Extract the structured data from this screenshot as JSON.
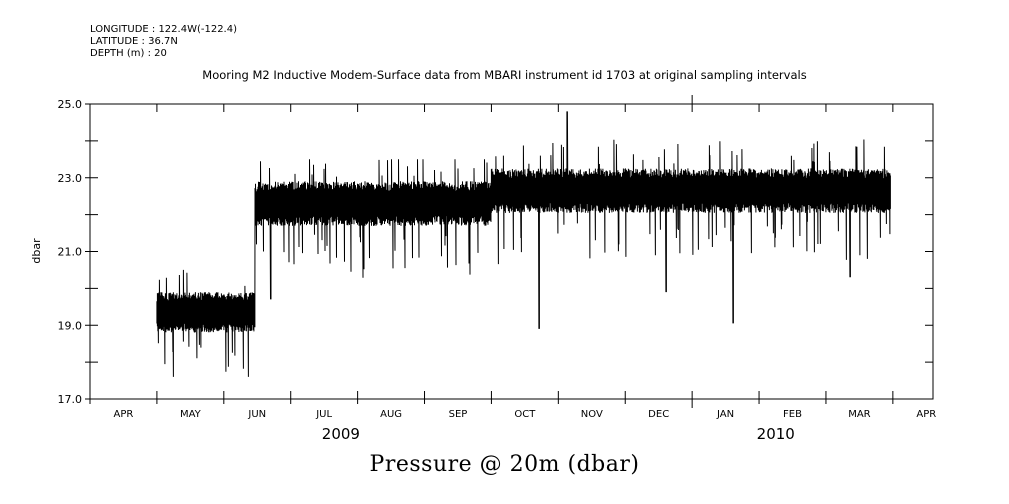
{
  "header": {
    "longitude": "LONGITUDE : 122.4W(-122.4)",
    "latitude": "LATITUDE : 36.7N",
    "depth": "DEPTH (m) : 20"
  },
  "chart_data": {
    "type": "line",
    "title": "Mooring M2 Inductive Modem-Surface data from MBARI instrument id 1703 at original sampling intervals",
    "bottom_title": "Pressure @ 20m (dbar)",
    "ylabel": "dbar",
    "xlabel": "",
    "ylim": [
      17.0,
      25.0
    ],
    "yticks": [
      "17.0",
      "19.0",
      "21.0",
      "23.0",
      "25.0"
    ],
    "xlim_months": [
      0,
      12.6
    ],
    "x_month_labels": [
      "APR",
      "MAY",
      "JUN",
      "JUL",
      "AUG",
      "SEP",
      "OCT",
      "NOV",
      "DEC",
      "JAN",
      "FEB",
      "MAR",
      "APR"
    ],
    "x_year_labels": [
      {
        "label": "2009",
        "month_index": 4
      },
      {
        "label": "2010",
        "month_index": 10.5
      }
    ],
    "grid": false,
    "series": [
      {
        "segments": [
          {
            "start": "2009-05-01",
            "end": "2009-06-15",
            "mean": 19.35,
            "spread": 0.5,
            "min": 17.6,
            "max": 20.5
          },
          {
            "start": "2009-06-15",
            "end": "2009-10-01",
            "mean": 22.3,
            "spread": 0.55,
            "min": 19.7,
            "max": 23.5
          },
          {
            "start": "2009-10-01",
            "end": "2010-03-31",
            "mean": 22.65,
            "spread": 0.55,
            "min": 18.9,
            "max": 24.8
          }
        ],
        "notable_spikes": [
          {
            "date": "2009-06-22",
            "value": 19.7
          },
          {
            "date": "2009-10-23",
            "value": 18.9
          },
          {
            "date": "2009-11-05",
            "value": 24.8
          },
          {
            "date": "2010-01-20",
            "value": 19.05
          },
          {
            "date": "2009-12-20",
            "value": 19.9
          },
          {
            "date": "2010-03-12",
            "value": 20.3
          }
        ]
      }
    ]
  }
}
